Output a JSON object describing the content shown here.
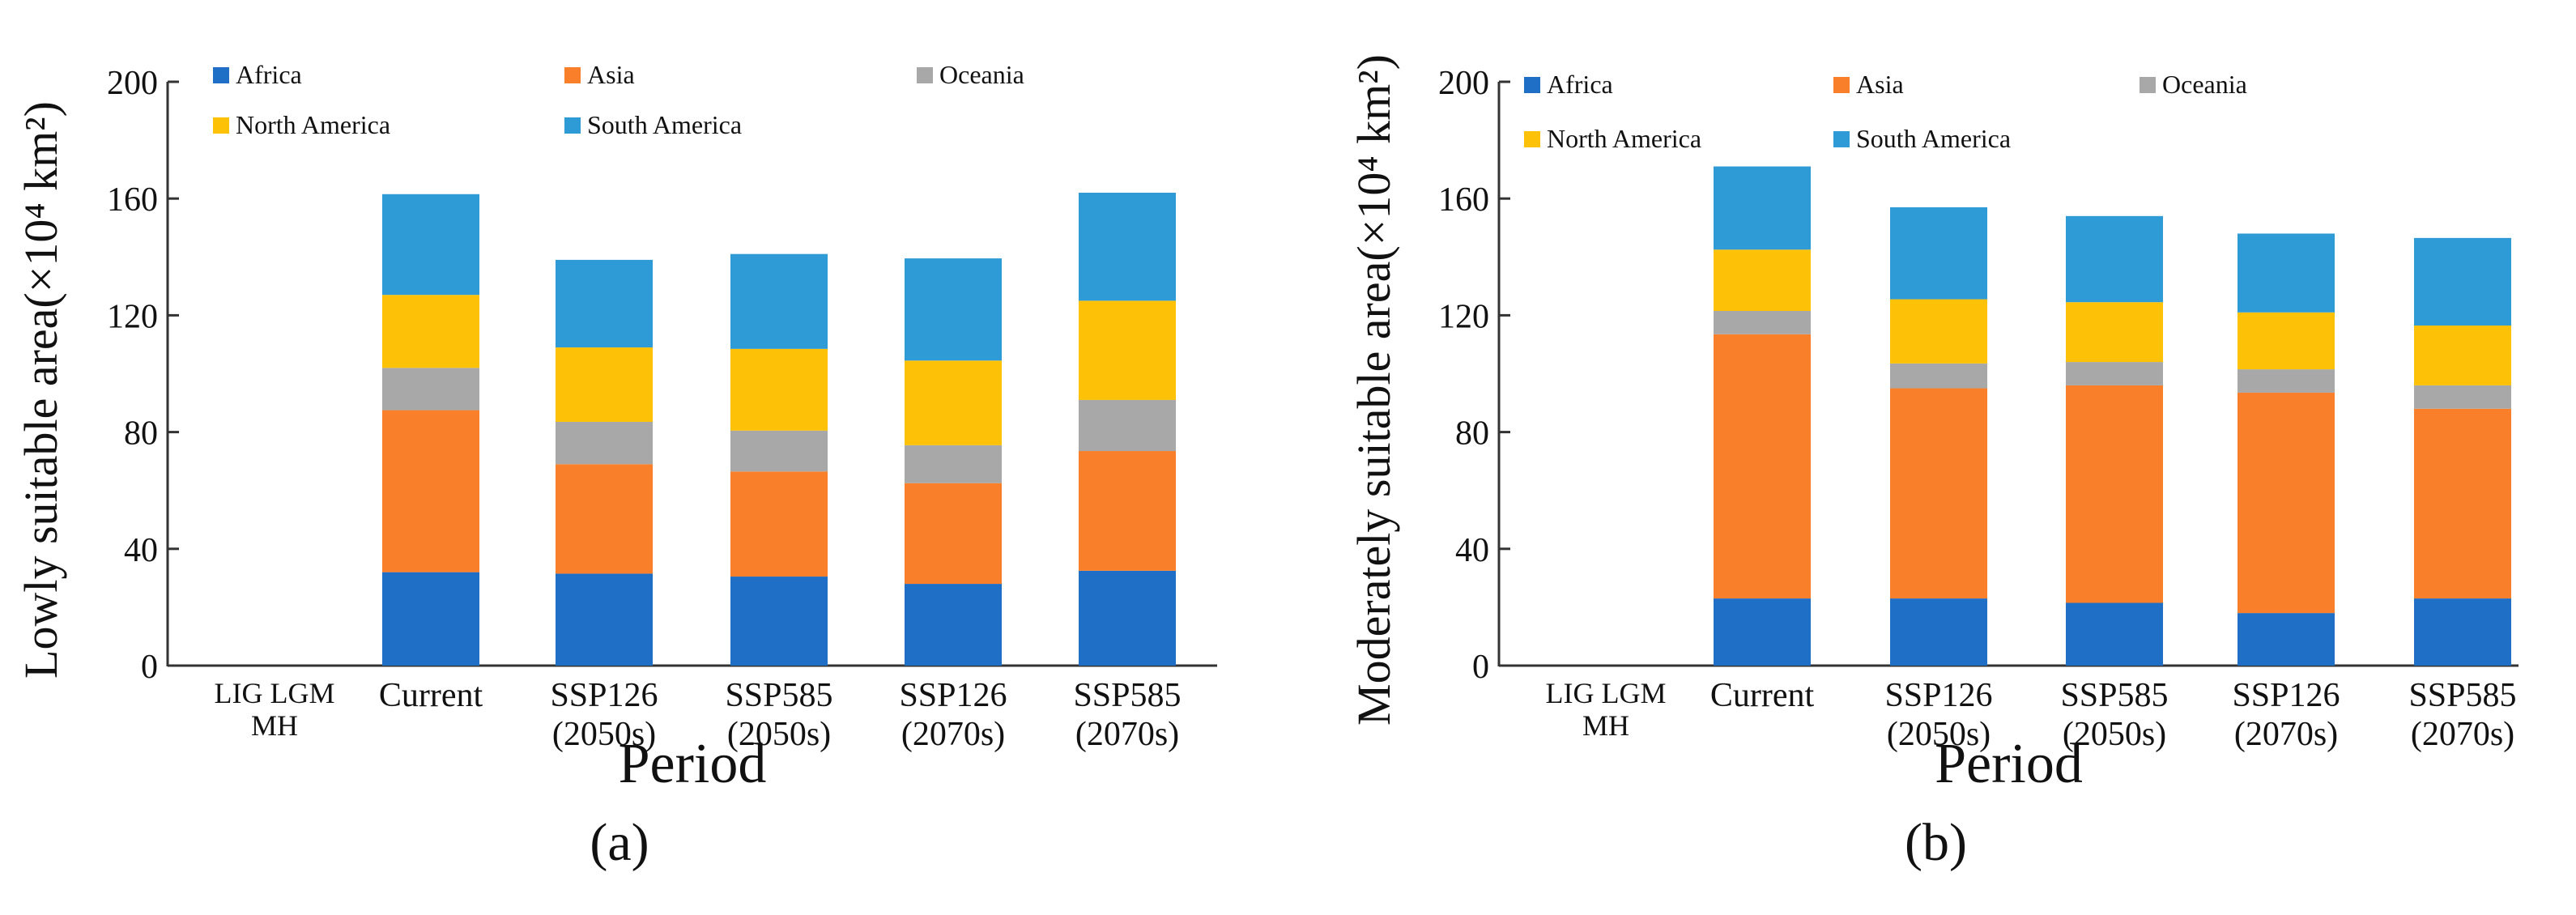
{
  "colors": {
    "Africa": "#1f6fc6",
    "Asia": "#f97f2a",
    "Oceania": "#a8a8a8",
    "North America": "#fdc207",
    "South America": "#2e9ad6",
    "axis": "#333333",
    "text": "#111111"
  },
  "chart_data": [
    {
      "type": "bar",
      "stacked": true,
      "panel_label": "(a)",
      "xlabel": "Period",
      "ylabel": "Lowly suitable area(×10⁴ km²)",
      "ylim": [
        0,
        200
      ],
      "yticks": [
        0,
        40,
        80,
        120,
        160,
        200
      ],
      "legend": [
        "Africa",
        "Asia",
        "Oceania",
        "North America",
        "South America"
      ],
      "categories": [
        [
          "LIG LGM",
          "MH"
        ],
        [
          "Current"
        ],
        [
          "SSP126",
          "(2050s)"
        ],
        [
          "SSP585",
          "(2050s)"
        ],
        [
          "SSP126",
          "(2070s)"
        ],
        [
          "SSP585",
          "(2070s)"
        ]
      ],
      "series": [
        {
          "name": "Africa",
          "values": [
            0,
            32,
            31.5,
            30.5,
            28,
            32.5
          ]
        },
        {
          "name": "Asia",
          "values": [
            0,
            55.5,
            37.5,
            36,
            34.5,
            41
          ]
        },
        {
          "name": "Oceania",
          "values": [
            0,
            14.5,
            14.5,
            14,
            13,
            17.5
          ]
        },
        {
          "name": "North America",
          "values": [
            0,
            25,
            25.5,
            28,
            29,
            34
          ]
        },
        {
          "name": "South America",
          "values": [
            0,
            34.5,
            30,
            32.5,
            35,
            37
          ]
        }
      ]
    },
    {
      "type": "bar",
      "stacked": true,
      "panel_label": "(b)",
      "xlabel": "Period",
      "ylabel": "Moderately suitable area(×10⁴ km²)",
      "ylim": [
        0,
        200
      ],
      "yticks": [
        0,
        40,
        80,
        120,
        160,
        200
      ],
      "legend": [
        "Africa",
        "Asia",
        "Oceania",
        "North America",
        "South America"
      ],
      "categories": [
        [
          "LIG LGM",
          "MH"
        ],
        [
          "Current"
        ],
        [
          "SSP126",
          "(2050s)"
        ],
        [
          "SSP585",
          "(2050s)"
        ],
        [
          "SSP126",
          "(2070s)"
        ],
        [
          "SSP585",
          "(2070s)"
        ]
      ],
      "series": [
        {
          "name": "Africa",
          "values": [
            0,
            23,
            23,
            21.5,
            18,
            23
          ]
        },
        {
          "name": "Asia",
          "values": [
            0,
            90.5,
            72,
            74.5,
            75.5,
            65
          ]
        },
        {
          "name": "Oceania",
          "values": [
            0,
            8,
            8.5,
            8,
            8,
            8
          ]
        },
        {
          "name": "North America",
          "values": [
            0,
            21,
            22,
            20.5,
            19.5,
            20.5
          ]
        },
        {
          "name": "South America",
          "values": [
            0,
            28.5,
            31.5,
            29.5,
            27,
            30
          ]
        }
      ]
    }
  ]
}
